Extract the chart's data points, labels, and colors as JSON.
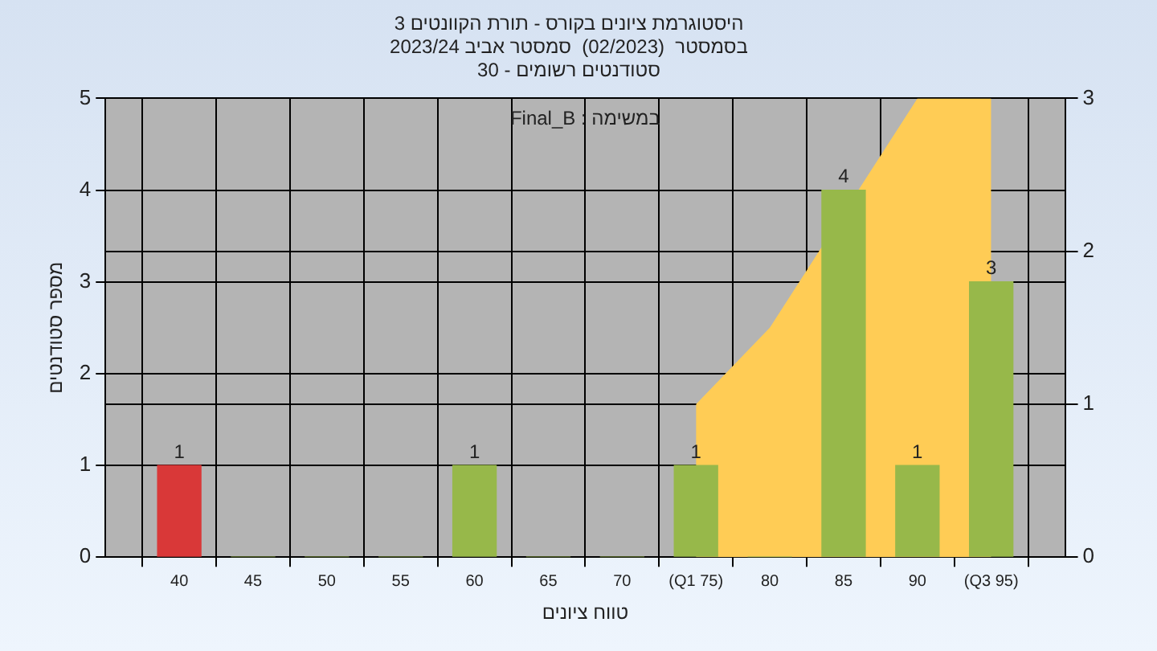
{
  "chart_data": {
    "type": "bar",
    "title": "היסטוגרמת ציונים בקורס - תורת הקוונטים 3",
    "subtitle": "בסמסטר  (02/2023)  סמסטר אביב 2023/24\nסטודנטים רשומים - 30",
    "xlabel": "טווח ציונים",
    "ylabel": "מספר סטודנטים",
    "annotations": [
      "Final_B : במשימה"
    ],
    "x": [
      40,
      45,
      50,
      55,
      60,
      65,
      70,
      75,
      80,
      85,
      90,
      95
    ],
    "series": [
      {
        "type": "area",
        "axis": "y2",
        "color": "#ffcc55",
        "x": [
          75,
          80,
          90,
          95
        ],
        "values": [
          1,
          1.5,
          3,
          3
        ]
      },
      {
        "colors": [
          "#d93838",
          "#97b84a",
          "#97b84a",
          "#97b84a",
          "#97b84a",
          "#97b84a",
          "#97b84a",
          "#97b84a",
          "#97b84a",
          "#97b84a",
          "#97b84a",
          "#97b84a"
        ],
        "values": [
          1,
          0,
          0,
          0,
          1,
          0,
          0,
          1,
          0,
          4,
          1,
          3
        ],
        "value_labels": [
          "1",
          null,
          null,
          null,
          "1",
          null,
          null,
          "1",
          null,
          "4",
          "1",
          "3"
        ]
      }
    ],
    "xlim": [
      35,
      100
    ],
    "xticks": [
      {
        "value": 35,
        "label": null
      },
      40,
      45,
      50,
      55,
      60,
      65,
      70,
      {
        "value": 75,
        "label": "(Q1 75)"
      },
      80,
      85,
      90,
      {
        "value": 95,
        "label": "(Q3 95)"
      },
      {
        "value": 100,
        "label": null
      }
    ],
    "ylim": [
      0,
      5
    ],
    "yticks": [
      0,
      1,
      2,
      3,
      4,
      5
    ],
    "y2lim": [
      0,
      3
    ],
    "y2ticks": [
      0,
      1,
      2,
      3
    ],
    "grid": true,
    "legend": false
  }
}
